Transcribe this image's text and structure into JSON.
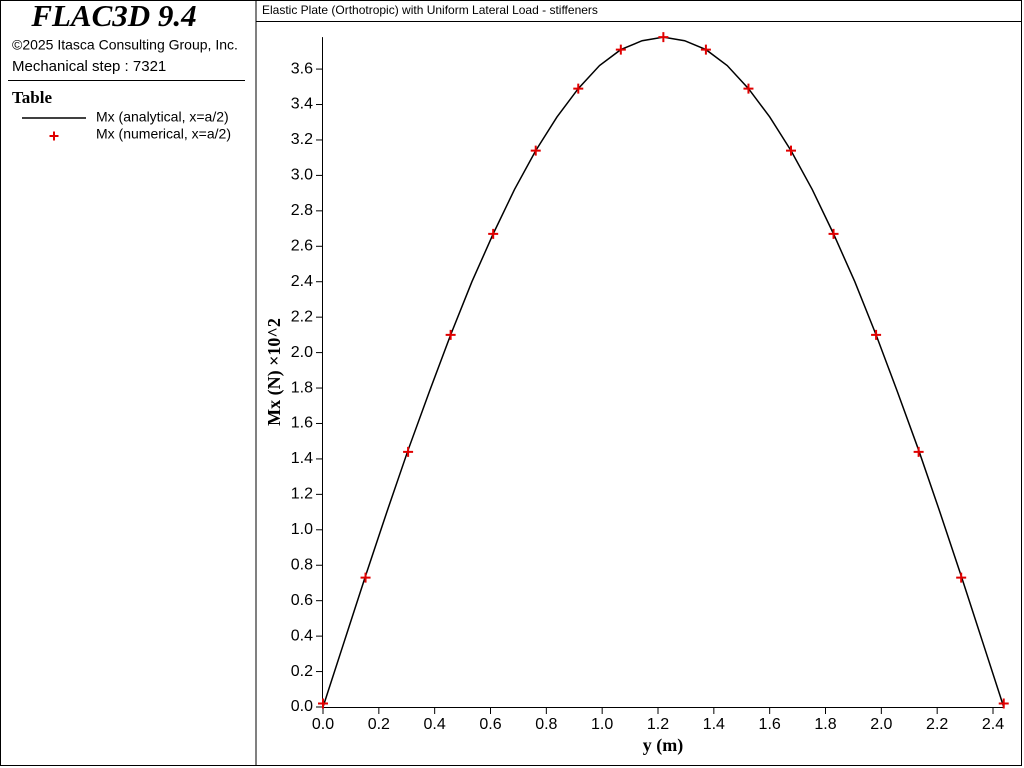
{
  "app": {
    "product": "FLAC3D 9.4",
    "copyright": "©2025 Itasca Consulting Group, Inc.",
    "status": "Mechanical step : 7321",
    "legend_title": "Table"
  },
  "chart_data": {
    "type": "line",
    "title": "Elastic Plate (Orthotropic) with Uniform Lateral Load - stiffeners",
    "x_label": "y (m)",
    "y_label": "Mx (N) ×10^2",
    "series": [
      {
        "name": "Mx (analytical, x=a/2)",
        "color": "#000000",
        "style": "line",
        "x": [
          0,
          0.0762,
          0.1524,
          0.2286,
          0.3048,
          0.381,
          0.4572,
          0.5334,
          0.6096,
          0.6858,
          0.762,
          0.8382,
          0.9144,
          0.9906,
          1.0668,
          1.143,
          1.2192,
          1.2954,
          1.3716,
          1.4478,
          1.524,
          1.6002,
          1.6764,
          1.7526,
          1.8288,
          1.905,
          1.9812,
          2.0574,
          2.1336,
          2.2098,
          2.286,
          2.3622,
          2.4384
        ],
        "values": [
          0,
          0.37,
          0.74,
          1.1,
          1.45,
          1.78,
          2.1,
          2.4,
          2.67,
          2.92,
          3.14,
          3.33,
          3.49,
          3.62,
          3.71,
          3.76,
          3.78,
          3.76,
          3.71,
          3.62,
          3.49,
          3.33,
          3.14,
          2.92,
          2.67,
          2.4,
          2.1,
          1.78,
          1.45,
          1.1,
          0.74,
          0.37,
          0
        ]
      },
      {
        "name": "Mx (numerical, x=a/2)",
        "color": "#e00000",
        "style": "marker",
        "x": [
          0,
          0.1524,
          0.3048,
          0.4572,
          0.6096,
          0.762,
          0.9144,
          1.0668,
          1.2192,
          1.3716,
          1.524,
          1.6764,
          1.8288,
          1.9812,
          2.1336,
          2.286,
          2.4384
        ],
        "values": [
          0.02,
          0.73,
          1.44,
          2.1,
          2.67,
          3.14,
          3.49,
          3.71,
          3.78,
          3.71,
          3.49,
          3.14,
          2.67,
          2.1,
          1.44,
          0.73,
          0.02
        ]
      }
    ],
    "xlim": [
      0,
      2.4384
    ],
    "ylim": [
      0,
      3.78
    ],
    "xticks": [
      {
        "value": 0,
        "label": "0.0"
      },
      0.2,
      0.4,
      0.6,
      0.8,
      {
        "value": 1,
        "label": "1.0"
      },
      1.2,
      1.4,
      1.6,
      1.8,
      {
        "value": 2,
        "label": "2.0"
      },
      2.2,
      2.4
    ],
    "yticks": [
      {
        "value": 0,
        "label": "0.0"
      },
      0.2,
      0.4,
      0.6,
      0.8,
      {
        "value": 1,
        "label": "1.0"
      },
      1.2,
      1.4,
      1.6,
      1.8,
      {
        "value": 2,
        "label": "2.0"
      },
      2.2,
      2.4,
      2.6,
      2.8,
      {
        "value": 3,
        "label": "3.0"
      },
      3.2,
      3.4,
      3.6
    ],
    "grid": false
  }
}
